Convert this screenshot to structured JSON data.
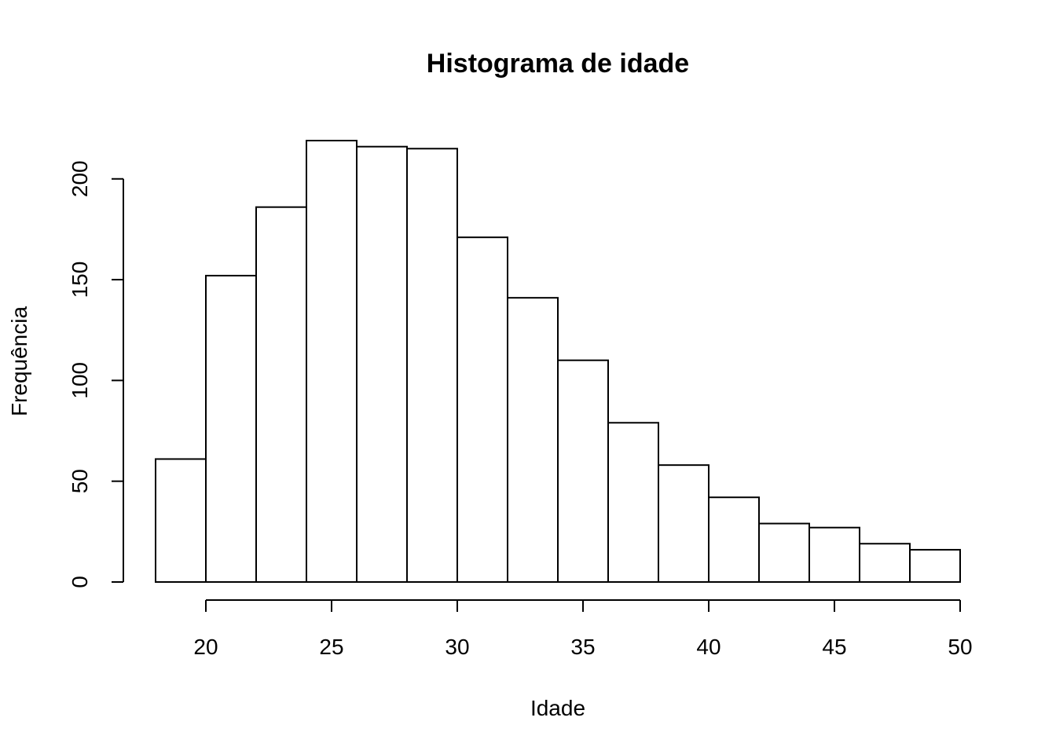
{
  "chart_data": {
    "type": "bar",
    "subtype": "histogram",
    "title": "Histograma de idade",
    "xlabel": "Idade",
    "ylabel": "Frequência",
    "bin_edges": [
      18,
      20,
      22,
      24,
      26,
      28,
      30,
      32,
      34,
      36,
      38,
      40,
      42,
      44,
      46,
      48,
      50
    ],
    "values": [
      61,
      152,
      186,
      219,
      216,
      215,
      171,
      141,
      110,
      79,
      58,
      42,
      29,
      27,
      19,
      16
    ],
    "xlim": [
      18,
      50
    ],
    "ylim": [
      0,
      219
    ],
    "x_ticks": [
      20,
      25,
      30,
      35,
      40,
      45,
      50
    ],
    "y_ticks": [
      0,
      50,
      100,
      150,
      200
    ],
    "grid": false,
    "bar_fill": "#ffffff",
    "bar_stroke": "#000000"
  }
}
